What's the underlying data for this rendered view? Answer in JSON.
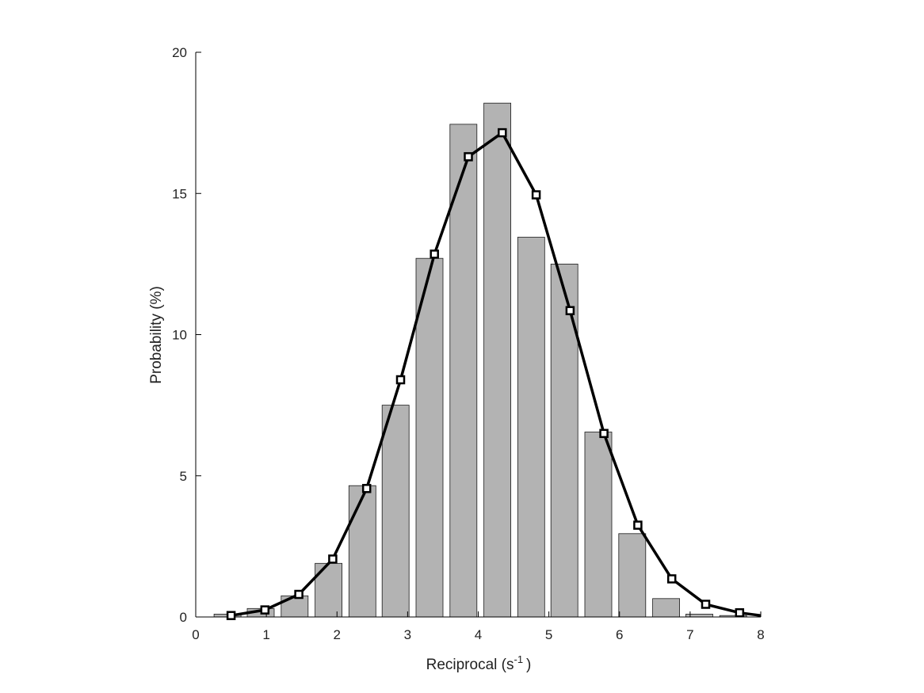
{
  "chart_data": {
    "type": "bar",
    "xlabel": "Reciprocal (s",
    "xlabel_sup": "-1",
    "xlabel_tail": ")",
    "ylabel": "Probability (%)",
    "xlim": [
      0,
      8
    ],
    "ylim": [
      0,
      20
    ],
    "xticks": [
      0,
      1,
      2,
      3,
      4,
      5,
      6,
      7,
      8
    ],
    "yticks": [
      0,
      5,
      10,
      15,
      20
    ],
    "grid": false,
    "legend": "none",
    "colors": {
      "bar_fill": "#b3b3b3",
      "bar_edge": "#1a1a1a",
      "line": "#000000",
      "marker_fill": "#ffffff"
    },
    "series": [
      {
        "type": "bar",
        "x": [
          0.45,
          0.92,
          1.4,
          1.88,
          2.36,
          2.83,
          3.31,
          3.79,
          4.27,
          4.75,
          5.22,
          5.7,
          6.18,
          6.66,
          7.13,
          7.61
        ],
        "values": [
          0.1,
          0.3,
          0.75,
          1.9,
          4.65,
          7.5,
          12.7,
          17.45,
          18.2,
          13.45,
          12.5,
          6.55,
          2.95,
          0.65,
          0.1,
          0.05
        ]
      },
      {
        "type": "line",
        "marker": "square",
        "x": [
          0.5,
          0.98,
          1.46,
          1.94,
          2.42,
          2.9,
          3.38,
          3.86,
          4.34,
          4.82,
          5.3,
          5.78,
          6.26,
          6.74,
          7.22,
          7.7,
          8.0
        ],
        "values": [
          0.05,
          0.25,
          0.8,
          2.05,
          4.55,
          8.4,
          12.85,
          16.3,
          17.15,
          14.95,
          10.85,
          6.5,
          3.25,
          1.35,
          0.45,
          0.15,
          0.05
        ]
      }
    ]
  }
}
